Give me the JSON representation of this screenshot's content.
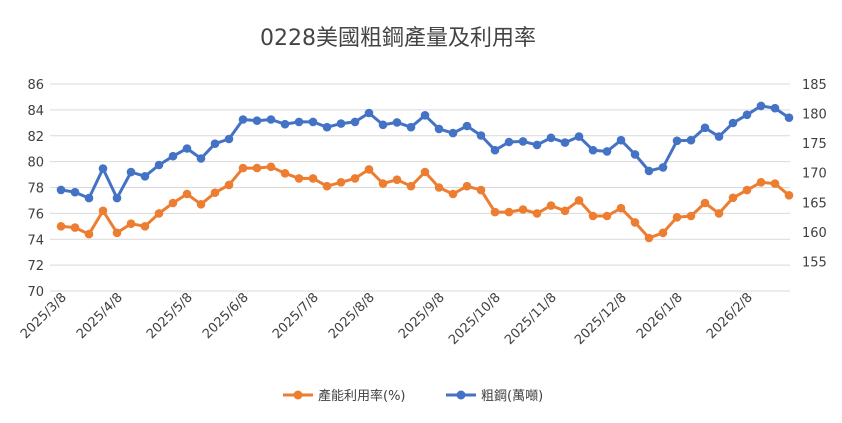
{
  "chart_data": {
    "type": "line",
    "title": "0228美國粗鋼產量及利用率",
    "x_tick_labels": [
      "2025/3/8",
      "2025/4/8",
      "2025/5/8",
      "2025/6/8",
      "2025/7/8",
      "2025/8/8",
      "2025/9/8",
      "2025/10/8",
      "2025/11/8",
      "2025/12/8",
      "2026/1/8",
      "2026/2/8"
    ],
    "y_left": {
      "min": 70,
      "max": 86,
      "step": 2,
      "ticks": [
        "70",
        "72",
        "74",
        "76",
        "78",
        "80",
        "82",
        "84",
        "86"
      ]
    },
    "y_right": {
      "min": 150,
      "max": 185,
      "step": 5,
      "ticks": [
        "155",
        "160",
        "165",
        "170",
        "175",
        "180",
        "185"
      ]
    },
    "legend_position": "bottom",
    "series": [
      {
        "name": "產能利用率(%)",
        "axis": "left",
        "color": "#ED7D31",
        "values": [
          75.0,
          74.9,
          74.4,
          76.2,
          74.5,
          75.2,
          75.0,
          76.0,
          76.8,
          77.5,
          76.7,
          77.6,
          78.2,
          79.5,
          79.5,
          79.6,
          79.1,
          78.7,
          78.7,
          78.1,
          78.4,
          78.7,
          79.4,
          78.3,
          78.6,
          78.1,
          79.2,
          78.0,
          77.5,
          78.1,
          77.8,
          76.1,
          76.1,
          76.3,
          76.0,
          76.6,
          76.2,
          77.0,
          75.8,
          75.8,
          76.4,
          75.3,
          74.1,
          74.5,
          75.7,
          75.8,
          76.8,
          76.0,
          77.2,
          77.8,
          78.4,
          78.3,
          77.4
        ]
      },
      {
        "name": "粗鋼(萬噸)",
        "axis": "right",
        "color": "#4472C4",
        "values": [
          167.1,
          166.7,
          165.7,
          170.7,
          165.7,
          170.1,
          169.4,
          171.3,
          172.8,
          174.1,
          172.4,
          174.9,
          175.7,
          179.0,
          178.8,
          179.0,
          178.2,
          178.6,
          178.6,
          177.7,
          178.3,
          178.6,
          180.1,
          178.1,
          178.5,
          177.7,
          179.7,
          177.4,
          176.7,
          177.9,
          176.3,
          173.8,
          175.2,
          175.3,
          174.7,
          175.9,
          175.1,
          176.1,
          173.8,
          173.6,
          175.5,
          173.1,
          170.3,
          170.9,
          175.4,
          175.5,
          177.6,
          176.1,
          178.4,
          179.8,
          181.3,
          180.9,
          179.3
        ]
      }
    ]
  }
}
